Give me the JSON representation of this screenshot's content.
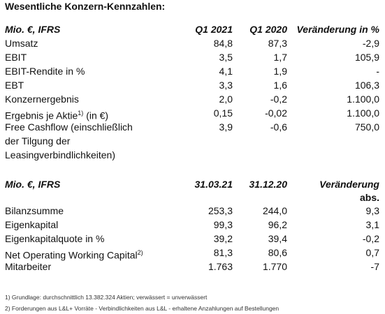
{
  "title": "Wesentliche Konzern-Kennzahlen:",
  "table1": {
    "header": [
      "Mio. €, IFRS",
      "Q1 2021",
      "Q1 2020",
      "Veränderung in %"
    ],
    "rows": [
      {
        "label": [
          "Umsatz"
        ],
        "cells": [
          "84,8",
          "87,3",
          "-2,9"
        ]
      },
      {
        "label": [
          "EBIT"
        ],
        "cells": [
          "3,5",
          "1,7",
          "105,9"
        ]
      },
      {
        "label": [
          "EBIT-Rendite in %"
        ],
        "cells": [
          "4,1",
          "1,9",
          "-"
        ]
      },
      {
        "label": [
          "EBT"
        ],
        "cells": [
          "3,3",
          "1,6",
          "106,3"
        ]
      },
      {
        "label": [
          "Konzernergebnis"
        ],
        "cells": [
          "2,0",
          "-0,2",
          "1.100,0"
        ]
      },
      {
        "label": [
          "Ergebnis je Aktie"
        ],
        "sup": "1)",
        "after": " (in €)",
        "cells": [
          "0,15",
          "-0,02",
          "1.100,0"
        ]
      },
      {
        "label": [
          "Free Cashflow (einschließlich",
          "der Tilgung der",
          "Leasingverbindlichkeiten)"
        ],
        "cells": [
          "3,9",
          "-0,6",
          "750,0"
        ]
      }
    ]
  },
  "table2": {
    "header": [
      "Mio. €, IFRS",
      "31.03.21",
      "31.12.20",
      "Veränderung"
    ],
    "header_line2": "abs.",
    "rows": [
      {
        "label": [
          "Bilanzsumme"
        ],
        "cells": [
          "253,3",
          "244,0",
          "9,3"
        ]
      },
      {
        "label": [
          "Eigenkapital"
        ],
        "cells": [
          "99,3",
          "96,2",
          "3,1"
        ]
      },
      {
        "label": [
          "Eigenkapitalquote in %"
        ],
        "cells": [
          "39,2",
          "39,4",
          "-0,2"
        ]
      },
      {
        "label": [
          "Net Operating Working Capital"
        ],
        "sup": "2)",
        "cells": [
          "81,3",
          "80,6",
          "0,7"
        ]
      },
      {
        "label": [
          "Mitarbeiter"
        ],
        "cells": [
          "1.763",
          "1.770",
          "-7"
        ]
      }
    ]
  },
  "footnotes": [
    "1) Grundlage: durchschnittlich 13.382.324 Aktien; verwässert = unverwässert",
    "2) Forderungen aus L&L+ Vorräte - Verbindlichkeiten aus L&L - erhaltene Anzahlungen auf Bestellungen"
  ]
}
